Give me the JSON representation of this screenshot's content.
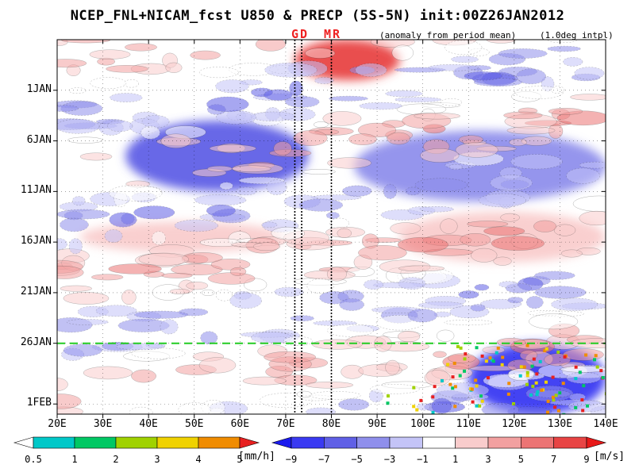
{
  "header": {
    "title": "NCEP_FNL+NICAM_fcst U850 & PRECP (5S-5N) init:00Z26JAN2012",
    "subtitle": "(anomaly from period mean)",
    "interp": "(1.0deg intpl)",
    "marker_gd": "GD",
    "marker_mr": "MR"
  },
  "chart_data": {
    "type": "heatmap",
    "title": "NCEP_FNL+NICAM_fcst U850 & PRECP (5S-5N) init:00Z26JAN2012",
    "xlabel": "",
    "ylabel": "",
    "x_ticks": [
      "20E",
      "30E",
      "40E",
      "50E",
      "60E",
      "70E",
      "80E",
      "90E",
      "100E",
      "110E",
      "120E",
      "130E",
      "140E"
    ],
    "x_values": [
      20,
      30,
      40,
      50,
      60,
      70,
      80,
      90,
      100,
      110,
      120,
      130,
      140
    ],
    "xlim": [
      20,
      140
    ],
    "y_ticks": [
      "1JAN",
      "6JAN",
      "11JAN",
      "16JAN",
      "21JAN",
      "26JAN",
      "1FEB"
    ],
    "y_dates": [
      "2012-01-01",
      "2012-01-06",
      "2012-01-11",
      "2012-01-16",
      "2012-01-21",
      "2012-01-26",
      "2012-02-01"
    ],
    "ylim": [
      "2011-12-27",
      "2012-02-02"
    ],
    "init_line_date": "2012-01-26",
    "init_line_color": "#22cc22",
    "vertical_lines_lon": [
      72,
      73.5,
      80
    ],
    "u850_colorbar": {
      "unit": "[m/s]",
      "labels": [
        "−9",
        "−7",
        "−5",
        "−3",
        "−1",
        "1",
        "3",
        "5",
        "7",
        "9"
      ],
      "levels": [
        -9,
        -7,
        -5,
        -3,
        -1,
        1,
        3,
        5,
        7,
        9
      ],
      "colors": [
        "#1a1aee",
        "#3a3af2",
        "#6060e6",
        "#8f8fec",
        "#c4c4f7",
        "#ffffff",
        "#f9cccc",
        "#f2a0a0",
        "#ec7474",
        "#e84444",
        "#e81818"
      ]
    },
    "precip_colorbar": {
      "unit": "[mm/h]",
      "labels": [
        "0.5",
        "1",
        "2",
        "3",
        "4",
        "5"
      ],
      "levels": [
        0.5,
        1,
        2,
        3,
        4,
        5
      ],
      "colors": [
        "#ffffff",
        "#00c8c8",
        "#00c864",
        "#a0d200",
        "#f0d200",
        "#f08c00",
        "#e82020"
      ]
    },
    "u850_features": [
      {
        "lon_range": [
          72,
          95
        ],
        "date_range": [
          "2011-12-27",
          "2011-12-31"
        ],
        "anomaly_m_s": 8
      },
      {
        "lon_range": [
          35,
          75
        ],
        "date_range": [
          "2012-01-04",
          "2012-01-11"
        ],
        "anomaly_m_s": -6
      },
      {
        "lon_range": [
          85,
          140
        ],
        "date_range": [
          "2012-01-05",
          "2012-01-12"
        ],
        "anomaly_m_s": -4
      },
      {
        "lon_range": [
          25,
          70
        ],
        "date_range": [
          "2012-01-14",
          "2012-01-17"
        ],
        "anomaly_m_s": 3
      },
      {
        "lon_range": [
          95,
          140
        ],
        "date_range": [
          "2012-01-13",
          "2012-01-18"
        ],
        "anomaly_m_s": 3
      },
      {
        "lon_range": [
          110,
          140
        ],
        "date_range": [
          "2012-01-26",
          "2012-02-02"
        ],
        "anomaly_m_s": -7
      }
    ]
  }
}
